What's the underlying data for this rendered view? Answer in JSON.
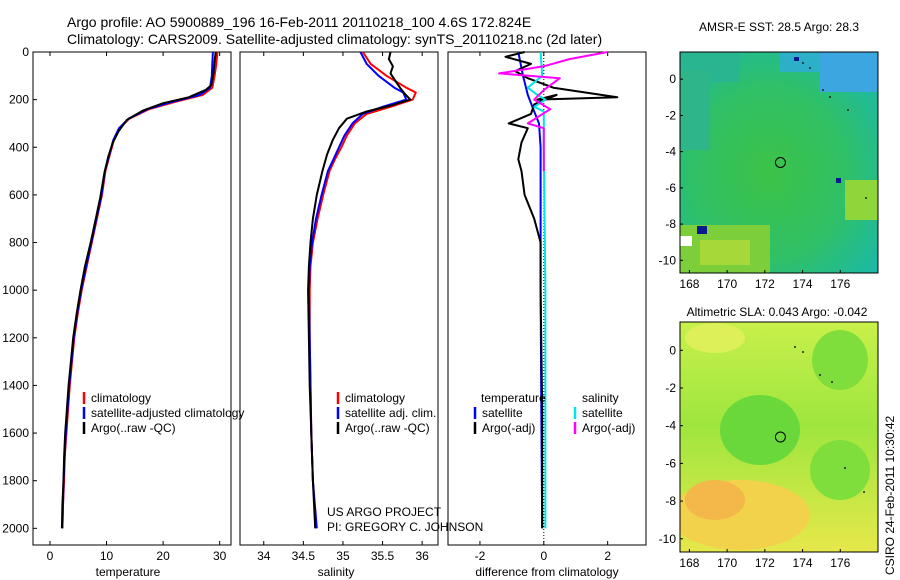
{
  "header": {
    "line1": "Argo profile: AO 5900889_196 16-Feb-2011 20110218_100 4.6S 172.824E",
    "line2": "Climatology: CARS2009. Satellite-adjusted climatology: synTS_20110218.nc (2d later)"
  },
  "credit": {
    "line1": "US ARGO PROJECT",
    "line2": "PI: GREGORY C. JOHNSON"
  },
  "stamp": "CSIRO 24-Feb-2011 10:30:42",
  "colors": {
    "climatology": "#ff0000",
    "satellite": "#0000ff",
    "argo": "#000000",
    "sal_satellite": "#00e5e5",
    "sal_argo": "#ff00ff"
  },
  "chart_data": [
    {
      "type": "line",
      "id": "temperature",
      "xlabel": "temperature",
      "ylabel": "",
      "xlim": [
        -3,
        32
      ],
      "ylim": [
        2070,
        0
      ],
      "xticks": [
        0,
        10,
        20,
        30
      ],
      "yticks": [
        0,
        200,
        400,
        600,
        800,
        1000,
        1200,
        1400,
        1600,
        1800,
        2000
      ],
      "legend": [
        "climatology",
        "satellite-adjusted climatology",
        "Argo(..raw -QC)"
      ],
      "legend_position": "lower-center",
      "series": [
        {
          "name": "climatology",
          "color": "#ff0000",
          "points": [
            [
              29.6,
              0
            ],
            [
              29.4,
              50
            ],
            [
              29.1,
              100
            ],
            [
              28.7,
              150
            ],
            [
              27,
              180
            ],
            [
              22,
              210
            ],
            [
              17.5,
              240
            ],
            [
              14,
              280
            ],
            [
              12.3,
              320
            ],
            [
              11.3,
              370
            ],
            [
              10.6,
              430
            ],
            [
              9.8,
              500
            ],
            [
              9.2,
              600
            ],
            [
              8.3,
              700
            ],
            [
              7.4,
              800
            ],
            [
              6.5,
              900
            ],
            [
              5.6,
              1000
            ],
            [
              4.9,
              1100
            ],
            [
              4.3,
              1200
            ],
            [
              3.9,
              1300
            ],
            [
              3.5,
              1400
            ],
            [
              3.2,
              1500
            ],
            [
              2.9,
              1600
            ],
            [
              2.6,
              1700
            ],
            [
              2.5,
              1800
            ],
            [
              2.3,
              1900
            ],
            [
              2.2,
              2000
            ]
          ]
        },
        {
          "name": "satellite-adjusted climatology",
          "color": "#0000ff",
          "points": [
            [
              28.8,
              0
            ],
            [
              28.7,
              50
            ],
            [
              28.6,
              100
            ],
            [
              28.3,
              150
            ],
            [
              26.5,
              180
            ],
            [
              21.5,
              210
            ],
            [
              17.2,
              240
            ],
            [
              13.9,
              280
            ],
            [
              12.2,
              320
            ],
            [
              11.2,
              370
            ],
            [
              10.5,
              430
            ],
            [
              9.7,
              500
            ],
            [
              9.1,
              600
            ],
            [
              8.2,
              700
            ],
            [
              7.3,
              800
            ],
            [
              6.4,
              900
            ],
            [
              5.5,
              1000
            ],
            [
              4.8,
              1100
            ],
            [
              4.2,
              1200
            ],
            [
              3.8,
              1300
            ],
            [
              3.4,
              1400
            ],
            [
              3.1,
              1500
            ],
            [
              2.8,
              1600
            ],
            [
              2.6,
              1700
            ],
            [
              2.4,
              1800
            ],
            [
              2.3,
              1900
            ],
            [
              2.2,
              2000
            ]
          ]
        },
        {
          "name": "Argo(..raw -QC)",
          "color": "#000000",
          "points": [
            [
              29.3,
              0
            ],
            [
              29.1,
              40
            ],
            [
              28.9,
              90
            ],
            [
              28.5,
              140
            ],
            [
              27.5,
              160
            ],
            [
              24.5,
              190
            ],
            [
              20,
              215
            ],
            [
              16.5,
              245
            ],
            [
              13.6,
              285
            ],
            [
              12.2,
              330
            ],
            [
              11.1,
              380
            ],
            [
              10.3,
              440
            ],
            [
              9.6,
              510
            ],
            [
              8.9,
              610
            ],
            [
              8.1,
              700
            ],
            [
              7.2,
              800
            ],
            [
              6.2,
              900
            ],
            [
              5.4,
              1000
            ],
            [
              4.7,
              1100
            ],
            [
              4.1,
              1200
            ],
            [
              3.7,
              1300
            ],
            [
              3.3,
              1400
            ],
            [
              3.0,
              1500
            ],
            [
              2.7,
              1600
            ],
            [
              2.5,
              1700
            ],
            [
              2.4,
              1800
            ],
            [
              2.2,
              1900
            ],
            [
              2.1,
              2000
            ]
          ]
        }
      ]
    },
    {
      "type": "line",
      "id": "salinity",
      "xlabel": "salinity",
      "ylabel": "",
      "xlim": [
        33.7,
        36.2
      ],
      "ylim": [
        2070,
        0
      ],
      "xticks": [
        34,
        34.5,
        35,
        35.5,
        36
      ],
      "xticklabels": [
        "34",
        "34.5",
        "35",
        "35.5",
        "36"
      ],
      "legend": [
        "climatology",
        "satellite adj. clim.",
        "Argo(..raw -QC)"
      ],
      "legend_position": "lower-center",
      "series": [
        {
          "name": "climatology",
          "color": "#ff0000",
          "points": [
            [
              35.25,
              0
            ],
            [
              35.35,
              50
            ],
            [
              35.55,
              100
            ],
            [
              35.8,
              150
            ],
            [
              35.92,
              170
            ],
            [
              35.88,
              200
            ],
            [
              35.6,
              230
            ],
            [
              35.3,
              260
            ],
            [
              35.15,
              300
            ],
            [
              35.05,
              350
            ],
            [
              34.98,
              400
            ],
            [
              34.9,
              450
            ],
            [
              34.83,
              500
            ],
            [
              34.75,
              600
            ],
            [
              34.68,
              700
            ],
            [
              34.62,
              800
            ],
            [
              34.59,
              900
            ],
            [
              34.58,
              1000
            ],
            [
              34.58,
              1200
            ],
            [
              34.59,
              1400
            ],
            [
              34.6,
              1600
            ],
            [
              34.62,
              1800
            ],
            [
              34.66,
              2000
            ]
          ]
        },
        {
          "name": "satellite adj. clim.",
          "color": "#0000ff",
          "points": [
            [
              35.22,
              0
            ],
            [
              35.3,
              50
            ],
            [
              35.45,
              100
            ],
            [
              35.65,
              150
            ],
            [
              35.76,
              170
            ],
            [
              35.8,
              200
            ],
            [
              35.5,
              230
            ],
            [
              35.25,
              260
            ],
            [
              35.12,
              300
            ],
            [
              35.02,
              350
            ],
            [
              34.95,
              400
            ],
            [
              34.88,
              450
            ],
            [
              34.81,
              500
            ],
            [
              34.73,
              600
            ],
            [
              34.66,
              700
            ],
            [
              34.61,
              800
            ],
            [
              34.58,
              900
            ],
            [
              34.57,
              1000
            ],
            [
              34.58,
              1200
            ],
            [
              34.59,
              1400
            ],
            [
              34.6,
              1600
            ],
            [
              34.62,
              1800
            ],
            [
              34.67,
              2000
            ]
          ]
        },
        {
          "name": "Argo(..raw -QC)",
          "color": "#000000",
          "points": [
            [
              35.6,
              0
            ],
            [
              35.58,
              30
            ],
            [
              35.63,
              60
            ],
            [
              35.6,
              90
            ],
            [
              35.66,
              120
            ],
            [
              35.72,
              150
            ],
            [
              35.78,
              175
            ],
            [
              35.85,
              200
            ],
            [
              35.6,
              225
            ],
            [
              35.3,
              250
            ],
            [
              35.05,
              280
            ],
            [
              34.95,
              320
            ],
            [
              34.87,
              370
            ],
            [
              34.8,
              430
            ],
            [
              34.74,
              500
            ],
            [
              34.67,
              600
            ],
            [
              34.62,
              700
            ],
            [
              34.59,
              800
            ],
            [
              34.57,
              900
            ],
            [
              34.56,
              1000
            ],
            [
              34.57,
              1200
            ],
            [
              34.58,
              1400
            ],
            [
              34.6,
              1600
            ],
            [
              34.62,
              1800
            ],
            [
              34.65,
              2000
            ]
          ]
        }
      ]
    },
    {
      "type": "line",
      "id": "difference",
      "xlabel": "difference from climatology",
      "ylabel": "",
      "xlim": [
        -3,
        3.2
      ],
      "ylim": [
        2070,
        0
      ],
      "xticks": [
        -2,
        0,
        2
      ],
      "legend_left": [
        "temperature",
        "satellite",
        "Argo(-adj)"
      ],
      "legend_right": [
        "salinity",
        "satellite",
        "Argo(-adj)"
      ],
      "legend_position": "lower-center",
      "series": [
        {
          "name": "temperature satellite",
          "color": "#0000ff",
          "points": [
            [
              -0.8,
              0
            ],
            [
              -0.65,
              100
            ],
            [
              -0.5,
              180
            ],
            [
              -0.3,
              250
            ],
            [
              -0.15,
              300
            ],
            [
              -0.1,
              400
            ],
            [
              -0.1,
              600
            ],
            [
              -0.1,
              1000
            ],
            [
              -0.08,
              1500
            ],
            [
              -0.05,
              2000
            ]
          ]
        },
        {
          "name": "temperature Argo(-adj)",
          "color": "#000000",
          "points": [
            [
              -0.6,
              0
            ],
            [
              -1.2,
              20
            ],
            [
              -0.4,
              50
            ],
            [
              -0.9,
              80
            ],
            [
              -0.5,
              110
            ],
            [
              0.3,
              150
            ],
            [
              2.3,
              190
            ],
            [
              -0.2,
              200
            ],
            [
              0.4,
              180
            ],
            [
              -0.3,
              220
            ],
            [
              -0.4,
              260
            ],
            [
              -1.1,
              300
            ],
            [
              -0.5,
              320
            ],
            [
              -0.7,
              380
            ],
            [
              -0.8,
              450
            ],
            [
              -0.7,
              500
            ],
            [
              -0.6,
              600
            ],
            [
              -0.3,
              700
            ],
            [
              -0.1,
              800
            ],
            [
              -0.1,
              1000
            ],
            [
              -0.05,
              1500
            ],
            [
              -0.05,
              2000
            ]
          ]
        },
        {
          "name": "salinity satellite",
          "color": "#00e5e5",
          "points": [
            [
              -0.1,
              0
            ],
            [
              -0.05,
              100
            ],
            [
              -0.5,
              150
            ],
            [
              -0.2,
              180
            ],
            [
              0.05,
              200
            ],
            [
              -0.3,
              230
            ],
            [
              0,
              250
            ],
            [
              0,
              400
            ],
            [
              0.05,
              1000
            ],
            [
              0.05,
              2000
            ]
          ]
        },
        {
          "name": "salinity Argo(-adj)",
          "color": "#ff00ff",
          "points": [
            [
              2,
              0
            ],
            [
              0.8,
              30
            ],
            [
              0,
              60
            ],
            [
              -1.4,
              90
            ],
            [
              0.5,
              110
            ],
            [
              0,
              160
            ],
            [
              -0.3,
              200
            ],
            [
              0.2,
              240
            ],
            [
              -0.5,
              300
            ],
            [
              0,
              320
            ],
            [
              0,
              500
            ]
          ]
        }
      ]
    },
    {
      "type": "heatmap",
      "id": "sst_map",
      "title": "AMSR-E SST: 28.5 Argo: 28.3",
      "xlim": [
        167.5,
        178
      ],
      "ylim": [
        -10.7,
        1.5
      ],
      "xticks": [
        168,
        170,
        172,
        174,
        176
      ],
      "yticks": [
        0,
        -2,
        -4,
        -6,
        -8,
        -10
      ],
      "float_position": [
        172.824,
        -4.6
      ]
    },
    {
      "type": "heatmap",
      "id": "sla_map",
      "title": "Altimetric SLA: 0.043 Argo: -0.042",
      "xlim": [
        167.5,
        178
      ],
      "ylim": [
        -10.7,
        1.5
      ],
      "xticks": [
        168,
        170,
        172,
        174,
        176
      ],
      "yticks": [
        0,
        -2,
        -4,
        -6,
        -8,
        -10
      ],
      "float_position": [
        172.824,
        -4.6
      ]
    }
  ]
}
